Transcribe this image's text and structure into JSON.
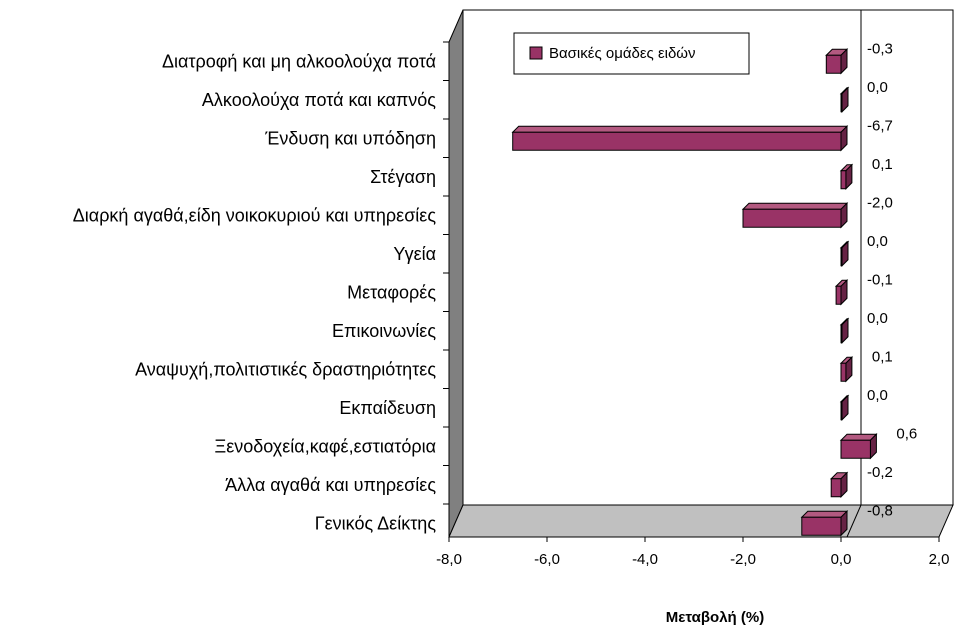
{
  "chart_data": {
    "type": "bar",
    "orientation": "horizontal",
    "categories": [
      "Διατροφή και μη αλκοολούχα ποτά",
      "Αλκοολούχα ποτά και καπνός",
      "Ένδυση και υπόδηση",
      "Στέγαση",
      "Διαρκή αγαθά,είδη νοικοκυριού και υπηρεσίες",
      "Υγεία",
      "Μεταφορές",
      "Επικοινωνίες",
      "Αναψυχή,πολιτιστικές δραστηριότητες",
      "Εκπαίδευση",
      "Ξενοδοχεία,καφέ,εστιατόρια",
      "Άλλα αγαθά και υπηρεσίες",
      "Γενικός Δείκτης"
    ],
    "series": [
      {
        "name": "Βασικές ομάδες ειδών",
        "values": [
          -0.3,
          0.0,
          -6.7,
          0.1,
          -2.0,
          0.0,
          -0.1,
          0.0,
          0.1,
          0.0,
          0.6,
          -0.2,
          -0.8
        ]
      }
    ],
    "value_labels": [
      "-0,3",
      "0,0",
      "-6,7",
      "0,1",
      "-2,0",
      "0,0",
      "-0,1",
      "0,0",
      "0,1",
      "0,0",
      "0,6",
      "-0,2",
      "-0,8"
    ],
    "xlabel": "Μεταβολή (%)",
    "ylabel": "",
    "xlim": [
      -8.0,
      2.0
    ],
    "xticks": [
      -8,
      -6,
      -4,
      -2,
      0,
      2
    ],
    "xtick_labels": [
      "-8,0",
      "-6,0",
      "-4,0",
      "-2,0",
      "0,0",
      "2,0"
    ],
    "legend_position": "top-left",
    "grid": false,
    "three_d": true,
    "colors": {
      "bar_front": "#993366",
      "bar_top": "#b35980",
      "bar_side": "#662244",
      "floor": "#c0c0c0",
      "wall": "#808080"
    }
  }
}
